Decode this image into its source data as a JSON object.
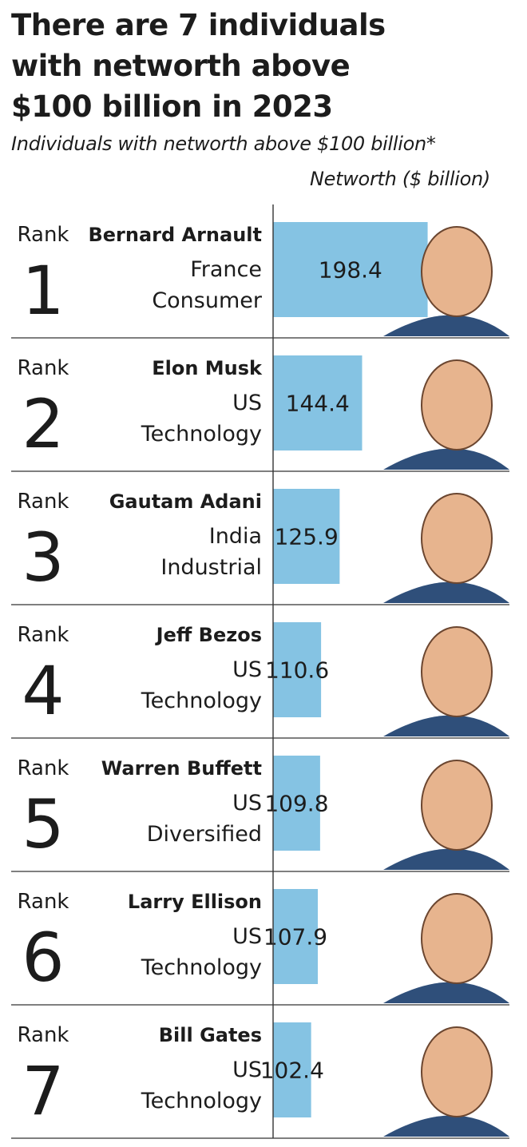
{
  "title_lines": [
    "There are 7 individuals",
    "with networth above",
    "$100 billion in 2023"
  ],
  "subtitle": "Individuals with networth above $100 billion*",
  "unit_label": "Networth ($ billion)",
  "rank_word": "Rank",
  "colors": {
    "bar": "#85c3e3",
    "text": "#1c1c1c",
    "rule": "#333333"
  },
  "chart_data": {
    "type": "bar",
    "orientation": "horizontal",
    "title": "There are 7 individuals with networth above $100 billion in 2023",
    "subtitle": "Individuals with networth above $100 billion*",
    "value_label": "Networth ($ billion)",
    "categories": [
      "Bernard Arnault",
      "Elon Musk",
      "Gautam Adani",
      "Jeff Bezos",
      "Warren Buffett",
      "Larry Ellison",
      "Bill Gates"
    ],
    "values": [
      198.4,
      144.4,
      125.9,
      110.6,
      109.8,
      107.9,
      102.4
    ],
    "grid": false,
    "legend": "none",
    "rows": [
      {
        "rank": "1",
        "name": "Bernard Arnault",
        "country": "France",
        "sector": "Consumer",
        "value": 198.4,
        "value_label": "198.4"
      },
      {
        "rank": "2",
        "name": "Elon Musk",
        "country": "US",
        "sector": "Technology",
        "value": 144.4,
        "value_label": "144.4"
      },
      {
        "rank": "3",
        "name": "Gautam Adani",
        "country": "India",
        "sector": "Industrial",
        "value": 125.9,
        "value_label": "125.9"
      },
      {
        "rank": "4",
        "name": "Jeff Bezos",
        "country": "US",
        "sector": "Technology",
        "value": 110.6,
        "value_label": "110.6"
      },
      {
        "rank": "5",
        "name": "Warren Buffett",
        "country": "US",
        "sector": "Diversified",
        "value": 109.8,
        "value_label": "109.8"
      },
      {
        "rank": "6",
        "name": "Larry Ellison",
        "country": "US",
        "sector": "Technology",
        "value": 107.9,
        "value_label": "107.9"
      },
      {
        "rank": "7",
        "name": "Bill Gates",
        "country": "US",
        "sector": "Technology",
        "value": 102.4,
        "value_label": "102.4"
      }
    ]
  }
}
